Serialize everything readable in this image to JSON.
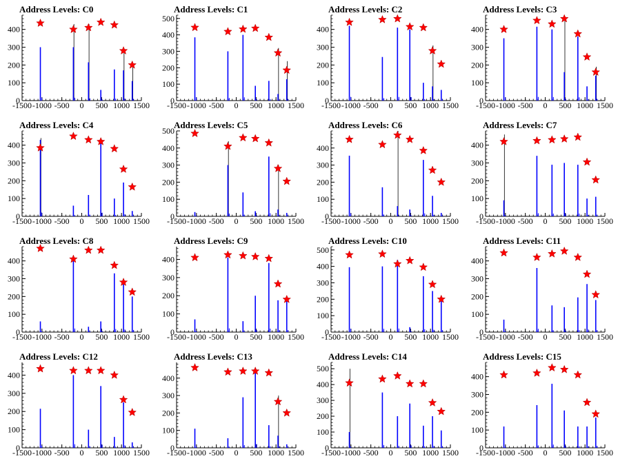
{
  "chart_data": [
    {
      "type": "bar",
      "title": "Address Levels: C0",
      "xlim": [
        -1500,
        1500
      ],
      "ylim": [
        0,
        480
      ],
      "xticks": [
        -1500,
        -1000,
        -500,
        0,
        500,
        1000,
        1500
      ],
      "yticks": [
        0,
        100,
        200,
        300,
        400
      ],
      "peaks": [
        {
          "x": -1040,
          "y": 435,
          "hist": 300,
          "line": 0
        },
        {
          "x": -210,
          "y": 400,
          "hist": 300,
          "line": 430
        },
        {
          "x": 170,
          "y": 410,
          "hist": 215,
          "line": 430
        },
        {
          "x": 480,
          "y": 440,
          "hist": 60,
          "line": 0
        },
        {
          "x": 820,
          "y": 425,
          "hist": 175,
          "line": 0
        },
        {
          "x": 1050,
          "y": 280,
          "hist": 170,
          "line": 290
        },
        {
          "x": 1270,
          "y": 200,
          "hist": 110,
          "line": 205
        }
      ]
    },
    {
      "type": "bar",
      "title": "Address Levels: C1",
      "xlim": [
        -1500,
        1500
      ],
      "ylim": [
        0,
        520
      ],
      "xticks": [
        -1500,
        -1000,
        -500,
        0,
        500,
        1000,
        1500
      ],
      "yticks": [
        0,
        100,
        200,
        300,
        400,
        500
      ],
      "peaks": [
        {
          "x": -1040,
          "y": 445,
          "hist": 385,
          "line": 0
        },
        {
          "x": -210,
          "y": 420,
          "hist": 300,
          "line": 0
        },
        {
          "x": 170,
          "y": 435,
          "hist": 400,
          "line": 0
        },
        {
          "x": 480,
          "y": 440,
          "hist": 90,
          "line": 0
        },
        {
          "x": 820,
          "y": 385,
          "hist": 120,
          "line": 0
        },
        {
          "x": 1050,
          "y": 290,
          "hist": 40,
          "line": 320
        },
        {
          "x": 1270,
          "y": 185,
          "hist": 130,
          "line": 240
        }
      ]
    },
    {
      "type": "bar",
      "title": "Address Levels: C2",
      "xlim": [
        -1500,
        1500
      ],
      "ylim": [
        0,
        480
      ],
      "xticks": [
        -1500,
        -1000,
        -500,
        0,
        500,
        1000,
        1500
      ],
      "yticks": [
        0,
        100,
        200,
        300,
        400
      ],
      "peaks": [
        {
          "x": -1040,
          "y": 440,
          "hist": 420,
          "line": 0
        },
        {
          "x": -210,
          "y": 455,
          "hist": 245,
          "line": 0
        },
        {
          "x": 170,
          "y": 460,
          "hist": 410,
          "line": 0
        },
        {
          "x": 480,
          "y": 415,
          "hist": 400,
          "line": 0
        },
        {
          "x": 820,
          "y": 410,
          "hist": 100,
          "line": 0
        },
        {
          "x": 1050,
          "y": 280,
          "hist": 80,
          "line": 310
        },
        {
          "x": 1270,
          "y": 205,
          "hist": 60,
          "line": 0
        }
      ]
    },
    {
      "type": "bar",
      "title": "Address Levels: C3",
      "xlim": [
        -1500,
        1500
      ],
      "ylim": [
        0,
        480
      ],
      "xticks": [
        -1500,
        -1000,
        -500,
        0,
        500,
        1000,
        1500
      ],
      "yticks": [
        0,
        100,
        200,
        300,
        400
      ],
      "peaks": [
        {
          "x": -1040,
          "y": 400,
          "hist": 350,
          "line": 0
        },
        {
          "x": -210,
          "y": 450,
          "hist": 415,
          "line": 0
        },
        {
          "x": 170,
          "y": 430,
          "hist": 400,
          "line": 0
        },
        {
          "x": 480,
          "y": 460,
          "hist": 160,
          "line": 460
        },
        {
          "x": 820,
          "y": 375,
          "hist": 360,
          "line": 0
        },
        {
          "x": 1050,
          "y": 245,
          "hist": 80,
          "line": 0
        },
        {
          "x": 1270,
          "y": 160,
          "hist": 140,
          "line": 190
        }
      ]
    },
    {
      "type": "bar",
      "title": "Address Levels: C4",
      "xlim": [
        -1500,
        1500
      ],
      "ylim": [
        0,
        480
      ],
      "xticks": [
        -1500,
        -1000,
        -500,
        0,
        500,
        1000,
        1500
      ],
      "yticks": [
        0,
        100,
        200,
        300,
        400
      ],
      "peaks": [
        {
          "x": -1040,
          "y": 385,
          "hist": 430,
          "line": 440
        },
        {
          "x": -210,
          "y": 450,
          "hist": 60,
          "line": 0
        },
        {
          "x": 170,
          "y": 430,
          "hist": 120,
          "line": 0
        },
        {
          "x": 480,
          "y": 420,
          "hist": 415,
          "line": 0
        },
        {
          "x": 820,
          "y": 380,
          "hist": 100,
          "line": 0
        },
        {
          "x": 1050,
          "y": 265,
          "hist": 190,
          "line": 0
        },
        {
          "x": 1270,
          "y": 165,
          "hist": 30,
          "line": 0
        }
      ]
    },
    {
      "type": "bar",
      "title": "Address Levels: C5",
      "xlim": [
        -1500,
        1500
      ],
      "ylim": [
        0,
        500
      ],
      "xticks": [
        -1500,
        -1000,
        -500,
        0,
        500,
        1000,
        1500
      ],
      "yticks": [
        0,
        100,
        200,
        300,
        400,
        500
      ],
      "peaks": [
        {
          "x": -1040,
          "y": 485,
          "hist": 25,
          "line": 0
        },
        {
          "x": -210,
          "y": 410,
          "hist": 300,
          "line": 440
        },
        {
          "x": 170,
          "y": 460,
          "hist": 140,
          "line": 0
        },
        {
          "x": 480,
          "y": 455,
          "hist": 30,
          "line": 0
        },
        {
          "x": 820,
          "y": 430,
          "hist": 350,
          "line": 0
        },
        {
          "x": 1050,
          "y": 280,
          "hist": 40,
          "line": 300
        },
        {
          "x": 1270,
          "y": 205,
          "hist": 20,
          "line": 0
        }
      ]
    },
    {
      "type": "bar",
      "title": "Address Levels: C6",
      "xlim": [
        -1500,
        1500
      ],
      "ylim": [
        0,
        500
      ],
      "xticks": [
        -1500,
        -1000,
        -500,
        0,
        500,
        1000,
        1500
      ],
      "yticks": [
        0,
        100,
        200,
        300,
        400
      ],
      "peaks": [
        {
          "x": -1040,
          "y": 450,
          "hist": 355,
          "line": 0
        },
        {
          "x": -210,
          "y": 420,
          "hist": 170,
          "line": 0
        },
        {
          "x": 170,
          "y": 475,
          "hist": 60,
          "line": 500
        },
        {
          "x": 480,
          "y": 450,
          "hist": 40,
          "line": 0
        },
        {
          "x": 820,
          "y": 385,
          "hist": 330,
          "line": 0
        },
        {
          "x": 1050,
          "y": 270,
          "hist": 120,
          "line": 0
        },
        {
          "x": 1270,
          "y": 200,
          "hist": 20,
          "line": 0
        }
      ]
    },
    {
      "type": "bar",
      "title": "Address Levels: C7",
      "xlim": [
        -1500,
        1500
      ],
      "ylim": [
        0,
        480
      ],
      "xticks": [
        -1500,
        -1000,
        -500,
        0,
        500,
        1000,
        1500
      ],
      "yticks": [
        0,
        100,
        200,
        300,
        400
      ],
      "peaks": [
        {
          "x": -1040,
          "y": 420,
          "hist": 90,
          "line": 460
        },
        {
          "x": -210,
          "y": 425,
          "hist": 340,
          "line": 0
        },
        {
          "x": 170,
          "y": 430,
          "hist": 290,
          "line": 0
        },
        {
          "x": 480,
          "y": 435,
          "hist": 300,
          "line": 0
        },
        {
          "x": 820,
          "y": 445,
          "hist": 290,
          "line": 0
        },
        {
          "x": 1050,
          "y": 305,
          "hist": 100,
          "line": 0
        },
        {
          "x": 1270,
          "y": 205,
          "hist": 110,
          "line": 0
        }
      ]
    },
    {
      "type": "bar",
      "title": "Address Levels: C8",
      "xlim": [
        -1500,
        1500
      ],
      "ylim": [
        0,
        480
      ],
      "xticks": [
        -1500,
        -1000,
        -500,
        0,
        500,
        1000,
        1500
      ],
      "yticks": [
        0,
        100,
        200,
        300,
        400
      ],
      "peaks": [
        {
          "x": -1040,
          "y": 470,
          "hist": 60,
          "line": 0
        },
        {
          "x": -210,
          "y": 410,
          "hist": 400,
          "line": 0
        },
        {
          "x": 170,
          "y": 460,
          "hist": 30,
          "line": 0
        },
        {
          "x": 480,
          "y": 460,
          "hist": 60,
          "line": 0
        },
        {
          "x": 820,
          "y": 375,
          "hist": 330,
          "line": 0
        },
        {
          "x": 1050,
          "y": 280,
          "hist": 270,
          "line": 0
        },
        {
          "x": 1270,
          "y": 225,
          "hist": 200,
          "line": 0
        }
      ]
    },
    {
      "type": "bar",
      "title": "Address Levels: C9",
      "xlim": [
        -1500,
        1500
      ],
      "ylim": [
        0,
        470
      ],
      "xticks": [
        -1500,
        -1000,
        -500,
        0,
        500,
        1000,
        1500
      ],
      "yticks": [
        0,
        100,
        200,
        300,
        400
      ],
      "peaks": [
        {
          "x": -1040,
          "y": 410,
          "hist": 70,
          "line": 0
        },
        {
          "x": -210,
          "y": 425,
          "hist": 410,
          "line": 0
        },
        {
          "x": 170,
          "y": 420,
          "hist": 60,
          "line": 0
        },
        {
          "x": 480,
          "y": 415,
          "hist": 200,
          "line": 0
        },
        {
          "x": 820,
          "y": 405,
          "hist": 380,
          "line": 0
        },
        {
          "x": 1050,
          "y": 265,
          "hist": 175,
          "line": 0
        },
        {
          "x": 1270,
          "y": 180,
          "hist": 175,
          "line": 0
        }
      ]
    },
    {
      "type": "bar",
      "title": "Address Levels: C10",
      "xlim": [
        -1500,
        1500
      ],
      "ylim": [
        0,
        520
      ],
      "xticks": [
        -1500,
        -1000,
        -500,
        0,
        500,
        1000,
        1500
      ],
      "yticks": [
        0,
        100,
        200,
        300,
        400,
        500
      ],
      "peaks": [
        {
          "x": -1040,
          "y": 470,
          "hist": 395,
          "line": 0
        },
        {
          "x": -210,
          "y": 475,
          "hist": 400,
          "line": 0
        },
        {
          "x": 170,
          "y": 415,
          "hist": 440,
          "line": 0
        },
        {
          "x": 480,
          "y": 435,
          "hist": 30,
          "line": 0
        },
        {
          "x": 820,
          "y": 395,
          "hist": 340,
          "line": 0
        },
        {
          "x": 1050,
          "y": 290,
          "hist": 250,
          "line": 0
        },
        {
          "x": 1270,
          "y": 200,
          "hist": 200,
          "line": 0
        }
      ]
    },
    {
      "type": "bar",
      "title": "Address Levels: C11",
      "xlim": [
        -1500,
        1500
      ],
      "ylim": [
        0,
        480
      ],
      "xticks": [
        -1500,
        -1000,
        -500,
        0,
        500,
        1000,
        1500
      ],
      "yticks": [
        0,
        100,
        200,
        300,
        400
      ],
      "peaks": [
        {
          "x": -1040,
          "y": 445,
          "hist": 70,
          "line": 0
        },
        {
          "x": -210,
          "y": 420,
          "hist": 360,
          "line": 0
        },
        {
          "x": 170,
          "y": 440,
          "hist": 150,
          "line": 0
        },
        {
          "x": 480,
          "y": 455,
          "hist": 140,
          "line": 0
        },
        {
          "x": 820,
          "y": 420,
          "hist": 195,
          "line": 0
        },
        {
          "x": 1050,
          "y": 325,
          "hist": 270,
          "line": 0
        },
        {
          "x": 1270,
          "y": 210,
          "hist": 180,
          "line": 0
        }
      ]
    },
    {
      "type": "bar",
      "title": "Address Levels: C12",
      "xlim": [
        -1500,
        1500
      ],
      "ylim": [
        0,
        470
      ],
      "xticks": [
        -1500,
        -1000,
        -500,
        0,
        500,
        1000,
        1500
      ],
      "yticks": [
        0,
        100,
        200,
        300,
        400
      ],
      "peaks": [
        {
          "x": -1040,
          "y": 435,
          "hist": 215,
          "line": 0
        },
        {
          "x": -210,
          "y": 425,
          "hist": 400,
          "line": 0
        },
        {
          "x": 170,
          "y": 425,
          "hist": 100,
          "line": 0
        },
        {
          "x": 480,
          "y": 425,
          "hist": 340,
          "line": 0
        },
        {
          "x": 820,
          "y": 400,
          "hist": 60,
          "line": 0
        },
        {
          "x": 1050,
          "y": 265,
          "hist": 250,
          "line": 0
        },
        {
          "x": 1270,
          "y": 195,
          "hist": 30,
          "line": 0
        }
      ]
    },
    {
      "type": "bar",
      "title": "Address Levels: C13",
      "xlim": [
        -1500,
        1500
      ],
      "ylim": [
        0,
        490
      ],
      "xticks": [
        -1500,
        -1000,
        -500,
        0,
        500,
        1000,
        1500
      ],
      "yticks": [
        0,
        100,
        200,
        300,
        400
      ],
      "peaks": [
        {
          "x": -1040,
          "y": 460,
          "hist": 110,
          "line": 0
        },
        {
          "x": -210,
          "y": 435,
          "hist": 55,
          "line": 0
        },
        {
          "x": 170,
          "y": 440,
          "hist": 290,
          "line": 0
        },
        {
          "x": 480,
          "y": 440,
          "hist": 440,
          "line": 0
        },
        {
          "x": 820,
          "y": 430,
          "hist": 130,
          "line": 0
        },
        {
          "x": 1050,
          "y": 265,
          "hist": 70,
          "line": 300
        },
        {
          "x": 1270,
          "y": 200,
          "hist": 20,
          "line": 0
        }
      ]
    },
    {
      "type": "bar",
      "title": "Address Levels: C14",
      "xlim": [
        -1500,
        1500
      ],
      "ylim": [
        0,
        540
      ],
      "xticks": [
        -1500,
        -1000,
        -500,
        0,
        500,
        1000,
        1500
      ],
      "yticks": [
        0,
        100,
        200,
        300,
        400,
        500
      ],
      "peaks": [
        {
          "x": -1040,
          "y": 410,
          "hist": 100,
          "line": 500
        },
        {
          "x": -210,
          "y": 435,
          "hist": 350,
          "line": 0
        },
        {
          "x": 170,
          "y": 455,
          "hist": 200,
          "line": 0
        },
        {
          "x": 480,
          "y": 405,
          "hist": 280,
          "line": 0
        },
        {
          "x": 820,
          "y": 405,
          "hist": 140,
          "line": 0
        },
        {
          "x": 1050,
          "y": 285,
          "hist": 200,
          "line": 0
        },
        {
          "x": 1270,
          "y": 230,
          "hist": 110,
          "line": 0
        }
      ]
    },
    {
      "type": "bar",
      "title": "Address Levels: C15",
      "xlim": [
        -1500,
        1500
      ],
      "ylim": [
        0,
        480
      ],
      "xticks": [
        -1500,
        -1000,
        -500,
        0,
        500,
        1000,
        1500
      ],
      "yticks": [
        0,
        100,
        200,
        300,
        400
      ],
      "peaks": [
        {
          "x": -1040,
          "y": 410,
          "hist": 120,
          "line": 0
        },
        {
          "x": -210,
          "y": 420,
          "hist": 240,
          "line": 0
        },
        {
          "x": 170,
          "y": 450,
          "hist": 360,
          "line": 0
        },
        {
          "x": 480,
          "y": 440,
          "hist": 210,
          "line": 0
        },
        {
          "x": 820,
          "y": 410,
          "hist": 120,
          "line": 0
        },
        {
          "x": 1050,
          "y": 255,
          "hist": 120,
          "line": 0
        },
        {
          "x": 1270,
          "y": 190,
          "hist": 170,
          "line": 0
        }
      ]
    }
  ],
  "colors": {
    "histogram": "#0000ff",
    "marker": "#ff0000",
    "marker_edge": "#aa0000",
    "axis": "#000000"
  }
}
